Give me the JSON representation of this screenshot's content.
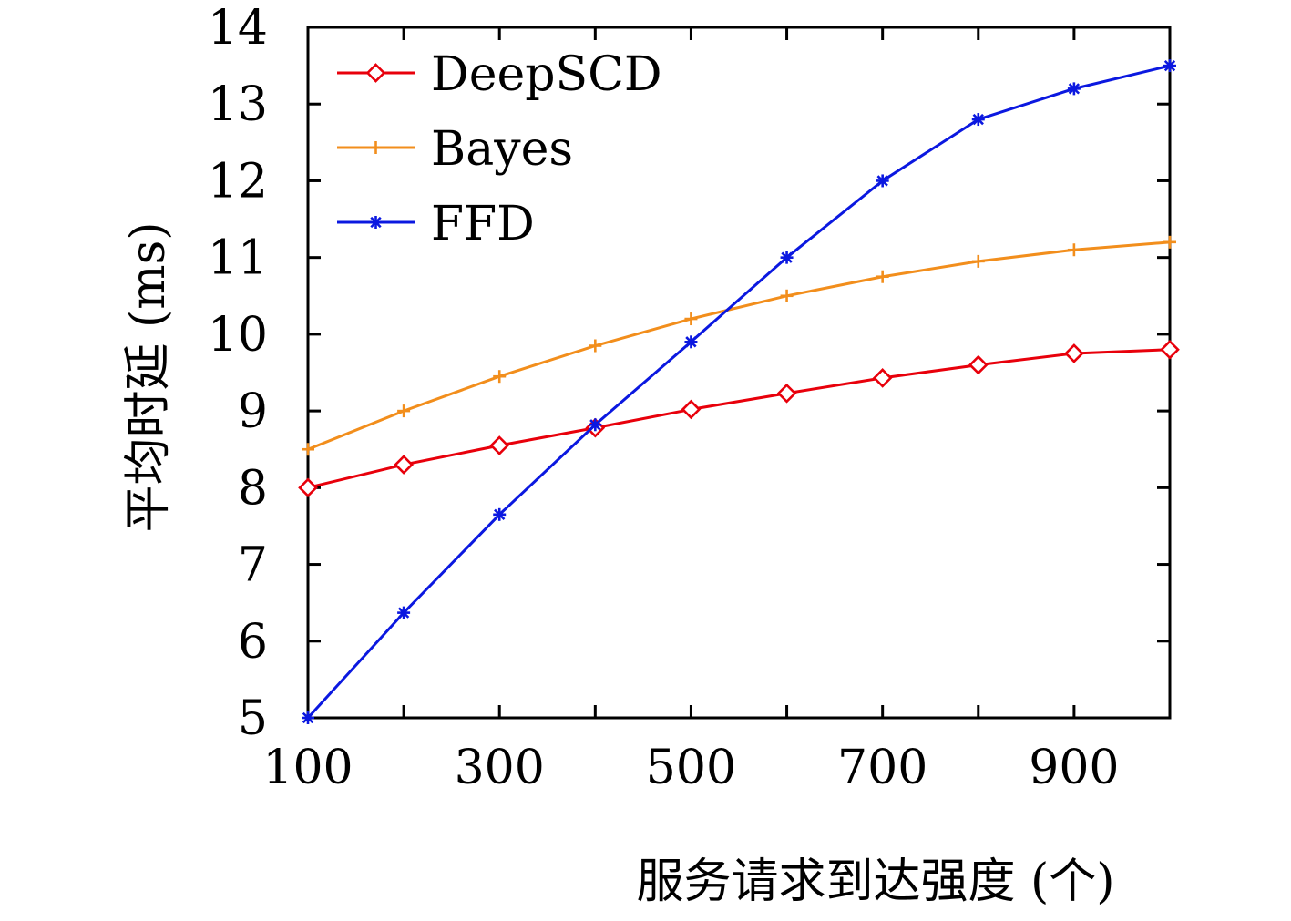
{
  "chart_data": {
    "type": "line",
    "title": "",
    "xlabel": "服务请求到达强度 (个)",
    "ylabel": "平均时延 (ms)",
    "x": [
      100,
      200,
      300,
      400,
      500,
      600,
      700,
      800,
      900,
      1000
    ],
    "xlim": [
      100,
      1000
    ],
    "ylim": [
      5,
      14
    ],
    "xticks": [
      100,
      300,
      500,
      700,
      900
    ],
    "yticks": [
      5,
      6,
      7,
      8,
      9,
      10,
      11,
      12,
      13,
      14
    ],
    "grid": false,
    "legend_position": "top-left",
    "series": [
      {
        "name": "DeepSCD",
        "color": "#e8000b",
        "marker": "diamond",
        "values": [
          8.0,
          8.3,
          8.55,
          8.78,
          9.02,
          9.23,
          9.43,
          9.6,
          9.75,
          9.8
        ]
      },
      {
        "name": "Bayes",
        "color": "#f28e1c",
        "marker": "plus",
        "values": [
          8.5,
          9.0,
          9.45,
          9.85,
          10.2,
          10.5,
          10.75,
          10.95,
          11.1,
          11.2
        ]
      },
      {
        "name": "FFD",
        "color": "#0b18e0",
        "marker": "asterisk",
        "values": [
          5.0,
          6.37,
          7.65,
          8.82,
          9.9,
          11.0,
          12.0,
          12.8,
          13.2,
          13.5
        ]
      }
    ]
  }
}
